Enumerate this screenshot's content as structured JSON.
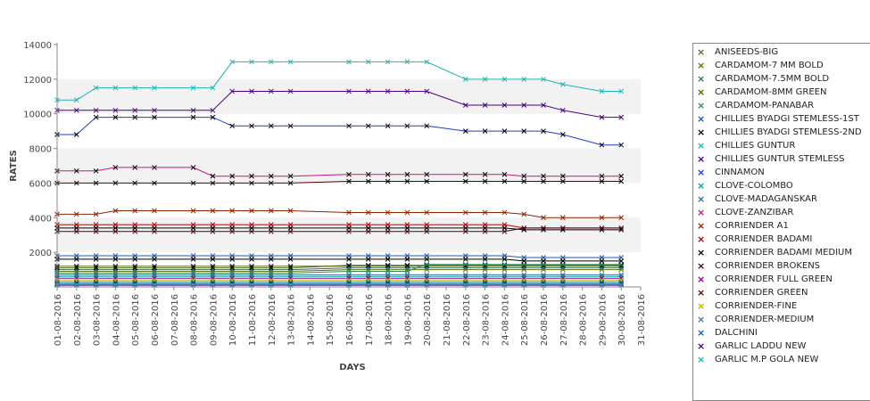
{
  "chart_data": {
    "type": "line",
    "xlabel": "DAYS",
    "ylabel": "RATES",
    "ylim": [
      0,
      14000
    ],
    "y_ticks": [
      2000,
      4000,
      6000,
      8000,
      10000,
      12000,
      14000
    ],
    "grid": "alternating horizontal bands",
    "legend_placement": "right",
    "x": [
      "01-08-2016",
      "02-08-2016",
      "03-08-2016",
      "04-08-2016",
      "05-08-2016",
      "06-08-2016",
      "07-08-2016",
      "08-08-2016",
      "09-08-2016",
      "10-08-2016",
      "11-08-2016",
      "12-08-2016",
      "13-08-2016",
      "14-08-2016",
      "15-08-2016",
      "16-08-2016",
      "17-08-2016",
      "18-08-2016",
      "19-08-2016",
      "20-08-2016",
      "21-08-2016",
      "22-08-2016",
      "23-08-2016",
      "24-08-2016",
      "25-08-2016",
      "26-08-2016",
      "27-08-2016",
      "28-08-2016",
      "29-08-2016",
      "30-08-2016",
      "31-08-2016"
    ],
    "series": [
      {
        "name": "ANISEEDS-BIG",
        "color": "#556b2f",
        "values": [
          1200,
          1200,
          1200,
          1200,
          1200,
          1200,
          null,
          1200,
          1200,
          1200,
          1200,
          1200,
          1200,
          null,
          null,
          1200,
          1200,
          1200,
          1200,
          1200,
          null,
          1200,
          1200,
          1200,
          1200,
          1200,
          1200,
          null,
          1200,
          1200,
          null
        ]
      },
      {
        "name": "CARDAMOM-7 MM BOLD",
        "color": "#6b6b00",
        "values": [
          900,
          900,
          900,
          900,
          900,
          900,
          null,
          900,
          900,
          900,
          900,
          900,
          900,
          null,
          null,
          1000,
          1000,
          1000,
          1000,
          1000,
          null,
          1000,
          1000,
          1000,
          1000,
          1000,
          1000,
          null,
          1000,
          1000,
          null
        ]
      },
      {
        "name": "CARDAMOM-7.5MM BOLD",
        "color": "#2e6b6b",
        "values": [
          1000,
          1000,
          1000,
          1000,
          1000,
          1000,
          null,
          1000,
          1000,
          1000,
          1000,
          1000,
          1000,
          null,
          null,
          1100,
          1100,
          1100,
          1100,
          1100,
          null,
          1100,
          1100,
          1100,
          1100,
          1100,
          1100,
          null,
          1100,
          1100,
          null
        ]
      },
      {
        "name": "CARDAMOM-8MM GREEN",
        "color": "#5c5c00",
        "values": [
          1100,
          1100,
          1100,
          1100,
          1100,
          1100,
          null,
          1100,
          1100,
          1100,
          1100,
          1100,
          1100,
          null,
          null,
          1250,
          1250,
          1250,
          1250,
          1250,
          null,
          1250,
          1250,
          1250,
          1250,
          1250,
          1250,
          null,
          1250,
          1250,
          null
        ]
      },
      {
        "name": "CARDAMOM-PANABAR",
        "color": "#2e8b57",
        "values": [
          800,
          800,
          800,
          800,
          800,
          800,
          null,
          800,
          800,
          800,
          800,
          800,
          800,
          null,
          null,
          900,
          900,
          900,
          900,
          1300,
          null,
          1300,
          1300,
          1300,
          1300,
          1300,
          1300,
          null,
          1300,
          1300,
          null
        ]
      },
      {
        "name": "CHILLIES BYADGI STEMLESS-1ST",
        "color": "#1e5aa8",
        "values": [
          1800,
          1800,
          1800,
          1800,
          1800,
          1800,
          null,
          1800,
          1800,
          1800,
          1800,
          1800,
          1800,
          null,
          null,
          1800,
          1800,
          1800,
          1800,
          1800,
          null,
          1800,
          1800,
          1800,
          1700,
          1700,
          1700,
          null,
          1700,
          1700,
          null
        ]
      },
      {
        "name": "CHILLIES BYADGI STEMLESS-2ND",
        "color": "#000000",
        "values": [
          1600,
          1600,
          1600,
          1600,
          1600,
          1600,
          null,
          1600,
          1600,
          1600,
          1600,
          1600,
          1600,
          null,
          null,
          1600,
          1600,
          1600,
          1600,
          1600,
          null,
          1600,
          1600,
          1600,
          1500,
          1500,
          1500,
          null,
          1500,
          1500,
          null
        ]
      },
      {
        "name": "CHILLIES GUNTUR",
        "color": "#20b2b2",
        "values": [
          10800,
          10800,
          11500,
          11500,
          11500,
          11500,
          null,
          11500,
          11500,
          13000,
          13000,
          13000,
          13000,
          null,
          null,
          13000,
          13000,
          13000,
          13000,
          13000,
          null,
          12000,
          12000,
          12000,
          12000,
          12000,
          11700,
          null,
          11300,
          11300,
          null
        ]
      },
      {
        "name": "CHILLIES GUNTUR STEMLESS",
        "color": "#4b0082",
        "values": [
          10200,
          10200,
          10200,
          10200,
          10200,
          10200,
          null,
          10200,
          10200,
          11300,
          11300,
          11300,
          11300,
          null,
          null,
          11300,
          11300,
          11300,
          11300,
          11300,
          null,
          10500,
          10500,
          10500,
          10500,
          10500,
          10200,
          null,
          9800,
          9800,
          null
        ]
      },
      {
        "name": "CINNAMON",
        "color": "#1a3cc8",
        "values": [
          8800,
          8800,
          9800,
          9800,
          9800,
          9800,
          null,
          9800,
          9800,
          9300,
          9300,
          9300,
          9300,
          null,
          null,
          9300,
          9300,
          9300,
          9300,
          9300,
          null,
          9000,
          9000,
          9000,
          9000,
          9000,
          8800,
          null,
          8200,
          8200,
          null
        ]
      },
      {
        "name": "CLOVE-COLOMBO",
        "color": "#00a0a0",
        "values": [
          600,
          600,
          600,
          600,
          600,
          600,
          null,
          600,
          600,
          600,
          600,
          600,
          600,
          null,
          null,
          600,
          600,
          600,
          600,
          600,
          null,
          600,
          600,
          600,
          600,
          600,
          600,
          null,
          600,
          600,
          null
        ]
      },
      {
        "name": "CLOVE-MADAGANSKAR",
        "color": "#2f6f8f",
        "values": [
          700,
          700,
          700,
          700,
          700,
          700,
          null,
          700,
          700,
          700,
          700,
          700,
          700,
          null,
          null,
          700,
          700,
          700,
          700,
          700,
          null,
          700,
          700,
          700,
          700,
          700,
          700,
          null,
          700,
          700,
          null
        ]
      },
      {
        "name": "CLOVE-ZANZIBAR",
        "color": "#c71585",
        "values": [
          6700,
          6700,
          6700,
          6900,
          6900,
          6900,
          null,
          6900,
          6400,
          6400,
          6400,
          6400,
          6400,
          null,
          null,
          6500,
          6500,
          6500,
          6500,
          6500,
          null,
          6500,
          6500,
          6500,
          6400,
          6400,
          6400,
          null,
          6400,
          6400,
          null
        ]
      },
      {
        "name": "CORRIENDER A1",
        "color": "#8b2500",
        "values": [
          4200,
          4200,
          4200,
          4400,
          4400,
          4400,
          null,
          4400,
          4400,
          4400,
          4400,
          4400,
          4400,
          null,
          null,
          4300,
          4300,
          4300,
          4300,
          4300,
          null,
          4300,
          4300,
          4300,
          4200,
          4000,
          4000,
          null,
          4000,
          4000,
          null
        ]
      },
      {
        "name": "CORRIENDER BADAMI",
        "color": "#b00000",
        "values": [
          3600,
          3600,
          3600,
          3600,
          3600,
          3600,
          null,
          3600,
          3600,
          3600,
          3600,
          3600,
          3600,
          null,
          null,
          3600,
          3600,
          3600,
          3600,
          3600,
          null,
          3600,
          3600,
          3600,
          3400,
          3400,
          3400,
          null,
          3400,
          3400,
          null
        ]
      },
      {
        "name": "CORRIENDER BADAMI MEDIUM",
        "color": "#000000",
        "values": [
          3400,
          3400,
          3400,
          3400,
          3400,
          3400,
          null,
          3400,
          3400,
          3400,
          3400,
          3400,
          3400,
          null,
          null,
          3400,
          3400,
          3400,
          3400,
          3400,
          null,
          3400,
          3400,
          3400,
          3300,
          3300,
          3300,
          null,
          3300,
          3300,
          null
        ]
      },
      {
        "name": "CORRIENDER BROKENS",
        "color": "#4a0010",
        "values": [
          3200,
          3200,
          3200,
          3200,
          3200,
          3200,
          null,
          3200,
          3200,
          3200,
          3200,
          3200,
          3200,
          null,
          null,
          3200,
          3200,
          3200,
          3200,
          3200,
          null,
          3200,
          3200,
          3200,
          3400,
          3400,
          3400,
          null,
          3400,
          3400,
          null
        ]
      },
      {
        "name": "CORRIENDER FULL GREEN",
        "color": "#8b008b",
        "values": [
          500,
          500,
          500,
          500,
          500,
          500,
          null,
          500,
          500,
          500,
          500,
          500,
          500,
          null,
          null,
          500,
          500,
          500,
          500,
          500,
          null,
          500,
          500,
          500,
          500,
          500,
          500,
          null,
          500,
          500,
          null
        ]
      },
      {
        "name": "CORRIENDER GREEN",
        "color": "#5a0000",
        "values": [
          6000,
          6000,
          6000,
          6000,
          6000,
          6000,
          null,
          6000,
          6000,
          6000,
          6000,
          6000,
          6000,
          null,
          null,
          6100,
          6100,
          6100,
          6100,
          6100,
          null,
          6100,
          6100,
          6100,
          6100,
          6100,
          6100,
          null,
          6100,
          6100,
          null
        ]
      },
      {
        "name": "CORRIENDER-FINE",
        "color": "#b8b800",
        "values": [
          400,
          400,
          400,
          400,
          400,
          400,
          null,
          400,
          400,
          400,
          400,
          400,
          400,
          null,
          null,
          400,
          400,
          400,
          400,
          400,
          null,
          400,
          400,
          400,
          400,
          400,
          400,
          null,
          400,
          400,
          null
        ]
      },
      {
        "name": "CORRIENDER-MEDIUM",
        "color": "#3a7a9a",
        "values": [
          300,
          300,
          300,
          300,
          300,
          300,
          null,
          300,
          300,
          300,
          300,
          300,
          300,
          null,
          null,
          300,
          300,
          300,
          300,
          300,
          null,
          300,
          300,
          300,
          300,
          300,
          300,
          null,
          300,
          300,
          null
        ]
      },
      {
        "name": "DALCHINI",
        "color": "#1a5fa0",
        "values": [
          200,
          200,
          200,
          200,
          200,
          200,
          null,
          200,
          200,
          200,
          200,
          200,
          200,
          null,
          null,
          200,
          200,
          200,
          200,
          200,
          null,
          200,
          200,
          200,
          200,
          200,
          200,
          null,
          200,
          200,
          null
        ]
      },
      {
        "name": "GARLIC LADDU NEW",
        "color": "#4b0082",
        "values": [
          100,
          100,
          100,
          100,
          100,
          100,
          null,
          100,
          100,
          100,
          100,
          100,
          100,
          null,
          null,
          100,
          100,
          100,
          100,
          100,
          null,
          100,
          100,
          100,
          100,
          100,
          100,
          null,
          100,
          100,
          null
        ]
      },
      {
        "name": "GARLIC M.P GOLA NEW",
        "color": "#20b2b2",
        "values": [
          150,
          150,
          150,
          150,
          150,
          150,
          null,
          150,
          150,
          150,
          150,
          150,
          150,
          null,
          null,
          150,
          150,
          150,
          150,
          150,
          null,
          150,
          150,
          150,
          150,
          150,
          150,
          null,
          150,
          150,
          null
        ]
      }
    ]
  }
}
